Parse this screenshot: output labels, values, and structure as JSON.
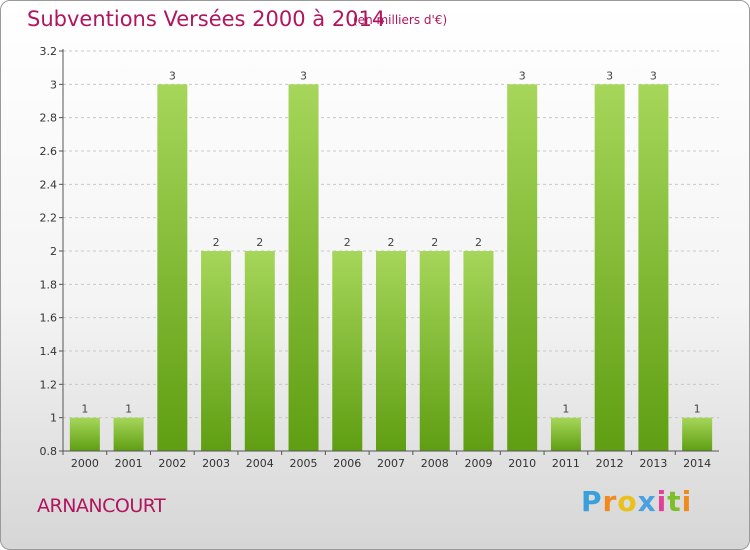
{
  "title": "Subventions Versées 2000 à 2014",
  "unit_note": "(en milliers d'€)",
  "commune": "ARNANCOURT",
  "brand": [
    "P",
    "r",
    "o",
    "x",
    "i",
    "t",
    "i"
  ],
  "colors": {
    "bar_light": "#a6d65a",
    "bar_dark": "#5f9e12",
    "title": "#b0155e"
  },
  "chart_data": {
    "type": "bar",
    "title": "Subventions Versées 2000 à 2014",
    "subtitle": "(en milliers d'€)",
    "xlabel": "",
    "ylabel": "",
    "categories": [
      "2000",
      "2001",
      "2002",
      "2003",
      "2004",
      "2005",
      "2006",
      "2007",
      "2008",
      "2009",
      "2010",
      "2011",
      "2012",
      "2013",
      "2014"
    ],
    "values": [
      1,
      1,
      3,
      2,
      2,
      3,
      2,
      2,
      2,
      2,
      3,
      1,
      3,
      3,
      1
    ],
    "data_labels": [
      "1",
      "1",
      "3",
      "2",
      "2",
      "3",
      "2",
      "2",
      "2",
      "2",
      "3",
      "1",
      "3",
      "3",
      "1"
    ],
    "ylim": [
      0.8,
      3.2
    ],
    "yticks": [
      0.8,
      1,
      1.2,
      1.4,
      1.6,
      1.8,
      2,
      2.2,
      2.4,
      2.6,
      2.8,
      3,
      3.2
    ],
    "ytick_labels": [
      "0.8",
      "1",
      "1.2",
      "1.4",
      "1.6",
      "1.8",
      "2",
      "2.2",
      "2.4",
      "2.6",
      "2.8",
      "3",
      "3.2"
    ],
    "grid": "dashed horizontal",
    "legend": "none"
  }
}
